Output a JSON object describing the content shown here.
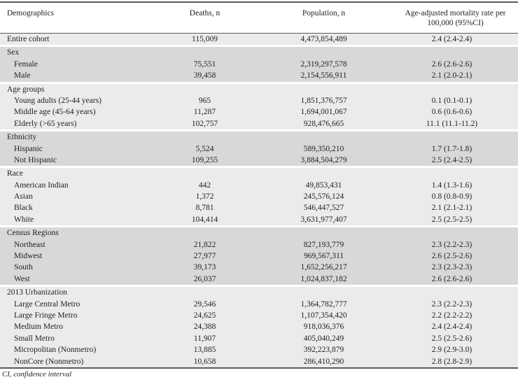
{
  "table": {
    "columns": [
      "Demographics",
      "Deaths, n",
      "Population, n",
      "Age-adjusted mortality rate per 100,000 (95%CI)"
    ],
    "groups": [
      {
        "label": null,
        "shade": "light",
        "rows": [
          {
            "label": "Entire cohort",
            "indent": false,
            "deaths": "115,009",
            "population": "4,473,854,489",
            "rate": "2.4 (2.4-2.4)"
          }
        ]
      },
      {
        "label": "Sex",
        "shade": "dark",
        "rows": [
          {
            "label": "Female",
            "indent": true,
            "deaths": "75,551",
            "population": "2,319,297,578",
            "rate": "2.6 (2.6-2.6)"
          },
          {
            "label": "Male",
            "indent": true,
            "deaths": "39,458",
            "population": "2,154,556,911",
            "rate": "2.1 (2.0-2.1)"
          }
        ]
      },
      {
        "label": "Age groups",
        "shade": "light",
        "rows": [
          {
            "label": "Young adults (25-44 years)",
            "indent": true,
            "deaths": "965",
            "population": "1,851,376,757",
            "rate": "0.1 (0.1-0.1)"
          },
          {
            "label": "Middle age (45-64 years)",
            "indent": true,
            "deaths": "11,287",
            "population": "1,694,001,067",
            "rate": "0.6 (0.6-0.6)"
          },
          {
            "label": "Elderly (>65 years)",
            "indent": true,
            "deaths": "102,757",
            "population": "928,476,665",
            "rate": "11.1 (11.1-11.2)"
          }
        ]
      },
      {
        "label": "Ethnicity",
        "shade": "dark",
        "rows": [
          {
            "label": "Hispanic",
            "indent": true,
            "deaths": "5,524",
            "population": "589,350,210",
            "rate": "1.7 (1.7-1.8)"
          },
          {
            "label": "Not Hispanic",
            "indent": true,
            "deaths": "109,255",
            "population": "3,884,504,279",
            "rate": "2.5 (2.4-2.5)"
          }
        ]
      },
      {
        "label": "Race",
        "shade": "light",
        "rows": [
          {
            "label": "American Indian",
            "indent": true,
            "deaths": "442",
            "population": "49,853,431",
            "rate": "1.4 (1.3-1.6)"
          },
          {
            "label": "Asian",
            "indent": true,
            "deaths": "1,372",
            "population": "245,576,124",
            "rate": "0.8 (0.8-0.9)"
          },
          {
            "label": "Black",
            "indent": true,
            "deaths": "8,781",
            "population": "546,447,527",
            "rate": "2.1 (2.1-2.1)"
          },
          {
            "label": "White",
            "indent": true,
            "deaths": "104,414",
            "population": "3,631,977,407",
            "rate": "2.5 (2.5-2.5)"
          }
        ]
      },
      {
        "label": "Census Regions",
        "shade": "dark",
        "rows": [
          {
            "label": "Northeast",
            "indent": true,
            "deaths": "21,822",
            "population": "827,193,779",
            "rate": "2.3 (2.2-2.3)"
          },
          {
            "label": "Midwest",
            "indent": true,
            "deaths": "27,977",
            "population": "969,567,311",
            "rate": "2.6 (2.5-2.6)"
          },
          {
            "label": "South",
            "indent": true,
            "deaths": "39,173",
            "population": "1,652,256,217",
            "rate": "2.3 (2.3-2.3)"
          },
          {
            "label": "West",
            "indent": true,
            "deaths": "26,037",
            "population": "1,024,837,182",
            "rate": "2.6 (2.6-2.6)"
          }
        ]
      },
      {
        "label": "2013 Urbanization",
        "shade": "light",
        "rows": [
          {
            "label": "Large Central Metro",
            "indent": true,
            "deaths": "29,546",
            "population": "1,364,782,777",
            "rate": "2.3 (2.2-2.3)"
          },
          {
            "label": "Large Fringe Metro",
            "indent": true,
            "deaths": "24,625",
            "population": "1,107,354,420",
            "rate": "2.2 (2.2-2.2)"
          },
          {
            "label": "Medium Metro",
            "indent": true,
            "deaths": "24,388",
            "population": "918,036,376",
            "rate": "2.4 (2.4-2.4)"
          },
          {
            "label": "Small Metro",
            "indent": true,
            "deaths": "11,907",
            "population": "405,040,249",
            "rate": "2.5 (2.5-2.6)"
          },
          {
            "label": "Micropolitan (Nonmetro)",
            "indent": true,
            "deaths": "13,885",
            "population": "392,223,879",
            "rate": "2.9 (2.9-3.0)"
          },
          {
            "label": "NonCore (Nonmetro)",
            "indent": true,
            "deaths": "10,658",
            "population": "286,410,290",
            "rate": "2.8 (2.8-2.9)"
          }
        ]
      }
    ],
    "footnote": "CI, confidence interval"
  },
  "colors": {
    "block_light": "#ebebeb",
    "block_dark": "#d8d8d8",
    "rule": "#5a5a5a",
    "text": "#1f1f1f"
  }
}
